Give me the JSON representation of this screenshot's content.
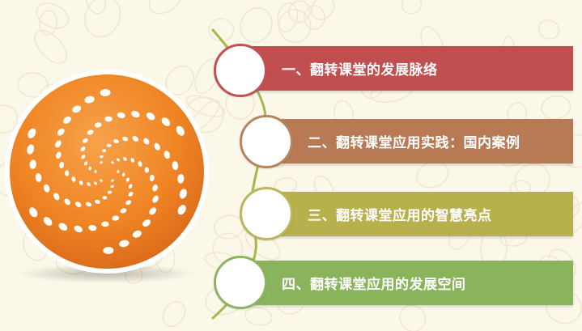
{
  "items": [
    {
      "label": "一、翻转课堂的发展脉络",
      "color": "#c14f4f"
    },
    {
      "label": "二、翻转课堂应用实践：国内案例",
      "color": "#b77a55"
    },
    {
      "label": "三、翻转课堂应用的智慧亮点",
      "color": "#b7b04c"
    },
    {
      "label": "四、翻转课堂应用的发展空间",
      "color": "#8ab45b"
    }
  ],
  "colors": {
    "background": "#fbf7e9",
    "logo_orange": "#f08a2a",
    "connector_green": "#a4b94a"
  },
  "icons": {
    "logo": "swirl-dots-logo-icon"
  }
}
